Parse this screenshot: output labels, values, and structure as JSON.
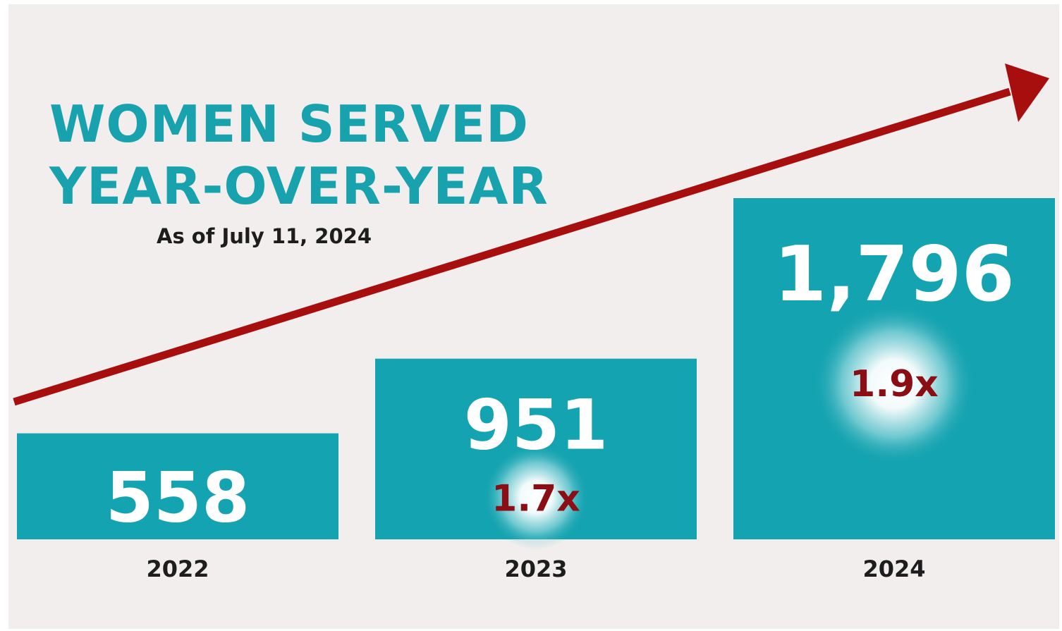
{
  "title_lines": [
    "WOMEN SERVED",
    "YEAR-OVER-YEAR"
  ],
  "subtitle": "As of July 11, 2024",
  "colors": {
    "background": "#f2eeee",
    "bar": "#14a3b0",
    "title": "#17a2ae",
    "arrow": "#a70e0e",
    "growth_label": "#8b0e14",
    "value_label": "#ffffff",
    "category_label": "#1d1d1d"
  },
  "chart_data": {
    "type": "bar",
    "title": "WOMEN SERVED YEAR-OVER-YEAR",
    "subtitle": "As of July 11, 2024",
    "categories": [
      "2022",
      "2023",
      "2024"
    ],
    "values": [
      558,
      951,
      1796
    ],
    "value_labels": [
      "558",
      "951",
      "1,796"
    ],
    "growth_labels": [
      "",
      "1.7x",
      "1.9x"
    ],
    "xlabel": "",
    "ylabel": "",
    "grid": false,
    "legend": "none",
    "annotations": [
      "upward trend arrow"
    ]
  }
}
